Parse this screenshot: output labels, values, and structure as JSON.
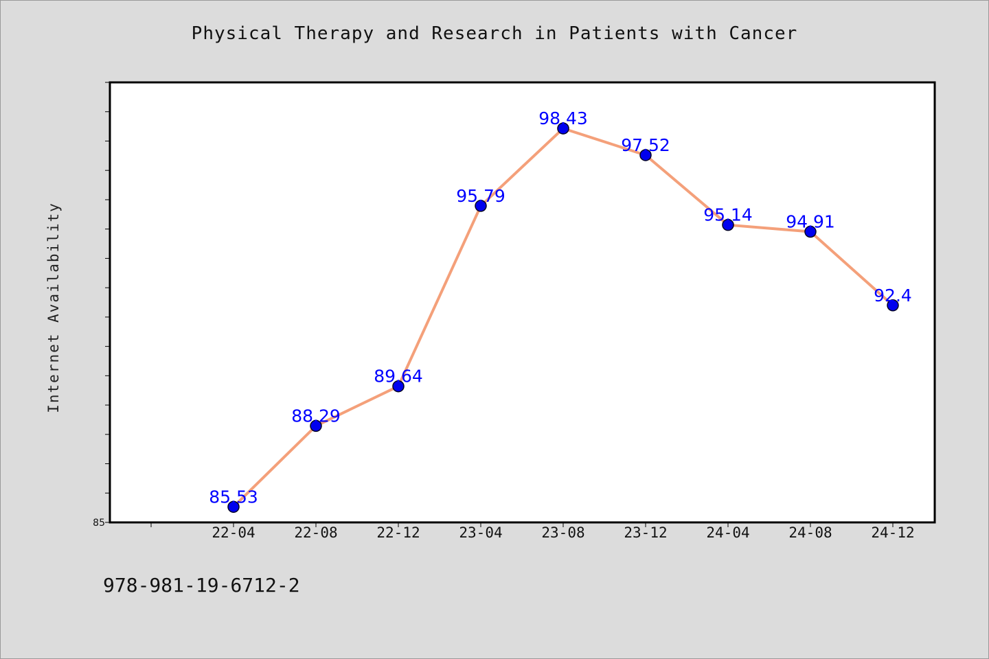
{
  "colors": {
    "background": "#dcdcdc",
    "plot_area": "#ffffff",
    "line": "#f4a07a",
    "marker": "#0000ee",
    "data_label": "#0000ff"
  },
  "footer": {
    "isbn": "978-981-19-6712-2"
  },
  "chart_data": {
    "type": "line",
    "title": "Physical Therapy and Research in Patients with Cancer",
    "xlabel": "",
    "ylabel": "Internet Availability",
    "categories": [
      "22-04",
      "22-08",
      "22-12",
      "23-04",
      "23-08",
      "23-12",
      "24-04",
      "24-08",
      "24-12"
    ],
    "series": [
      {
        "values": [
          85.53,
          88.29,
          89.64,
          95.79,
          98.43,
          97.52,
          95.14,
          94.91,
          92.4
        ]
      }
    ],
    "data_labels": [
      "85.53",
      "88.29",
      "89.64",
      "95.79",
      "98.43",
      "97.52",
      "95.14",
      "94.91",
      "92.4"
    ],
    "ylim": [
      85,
      100
    ],
    "yticks_labeled": [
      85
    ],
    "ytick_step": 1,
    "grid": false,
    "legend": "none"
  }
}
